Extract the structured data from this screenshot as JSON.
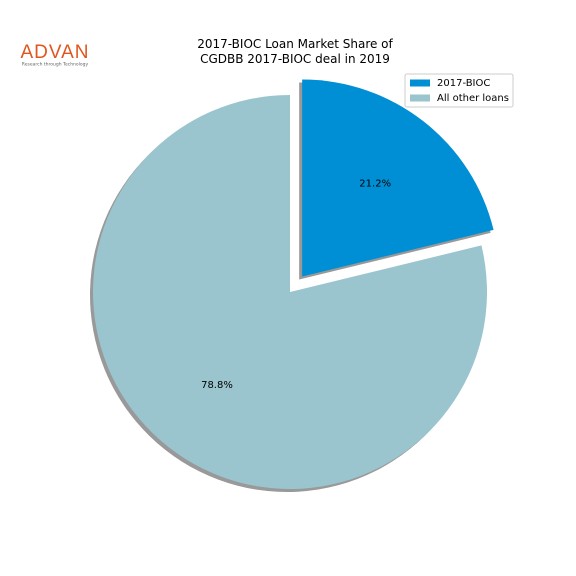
{
  "logo": {
    "name": "ADVAN",
    "tagline": "Research through Technology"
  },
  "chart_data": {
    "type": "pie",
    "title": "2017-BIOC Loan Market Share of\nCGDBB 2017-BIOC deal in 2019",
    "categories": [
      "2017-BIOC",
      "All other loans"
    ],
    "values": [
      21.2,
      78.8
    ],
    "value_labels": [
      "21.2%",
      "78.8%"
    ],
    "colors": [
      "#008fd5",
      "#9ac5ce"
    ],
    "explode": [
      0.1,
      0
    ],
    "shadow": true,
    "legend": "upper right"
  }
}
